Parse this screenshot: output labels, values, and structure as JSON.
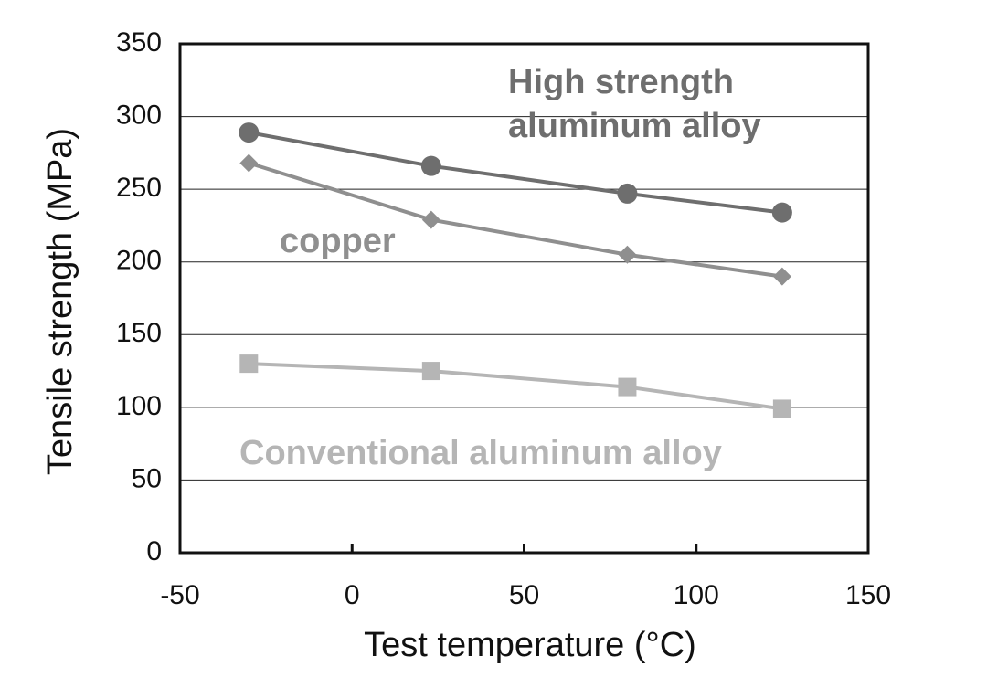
{
  "chart_data": {
    "type": "line",
    "x_label": "Test temperature (°C)",
    "y_label": "Tensile strength (MPa)",
    "x": [
      -30,
      23,
      80,
      125
    ],
    "series": [
      {
        "name": "High strength aluminum alloy",
        "color": "#6e6e6e",
        "marker": "circle",
        "values": [
          289,
          266,
          247,
          234
        ]
      },
      {
        "name": "copper",
        "color": "#8f8f8f",
        "marker": "diamond",
        "values": [
          268,
          229,
          205,
          190
        ]
      },
      {
        "name": "Conventional aluminum alloy",
        "color": "#b5b5b5",
        "marker": "square",
        "values": [
          130,
          125,
          114,
          99
        ]
      }
    ],
    "xlim": [
      -50,
      150
    ],
    "xticks": [
      -50,
      0,
      50,
      100,
      150
    ],
    "ylim": [
      0,
      350
    ],
    "yticks": [
      0,
      50,
      100,
      150,
      200,
      250,
      300,
      350
    ],
    "grid": true
  }
}
